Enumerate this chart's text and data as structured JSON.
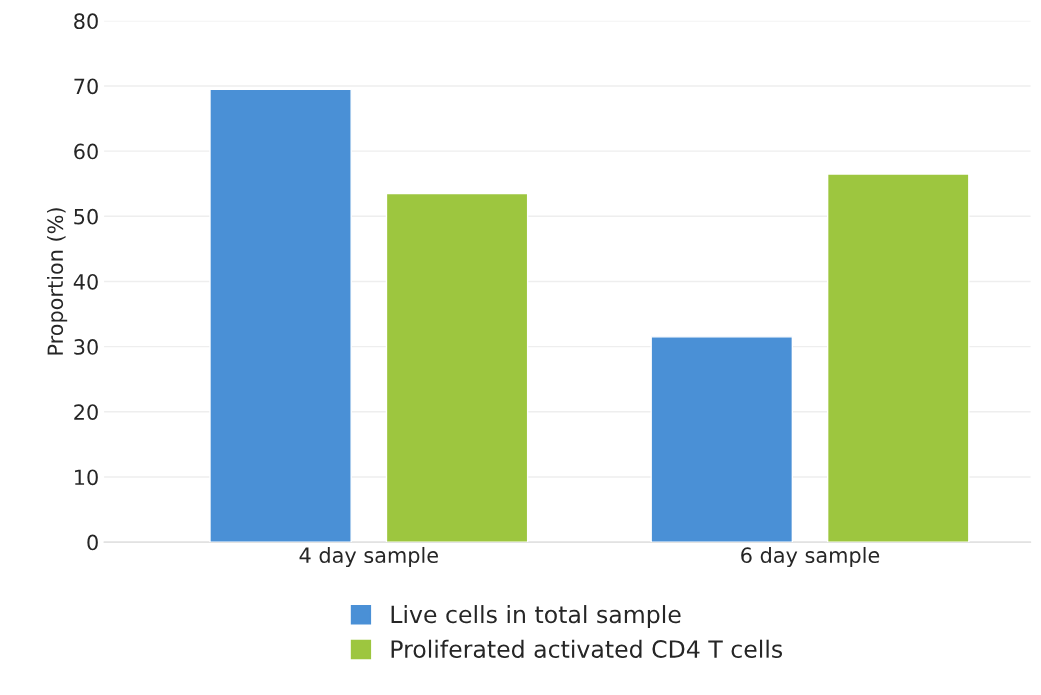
{
  "chart_data": {
    "type": "bar",
    "ylabel": "Proportion (%)",
    "categories": [
      "4 day sample",
      "6 day sample"
    ],
    "series": [
      {
        "name": "Live cells in total sample",
        "color": "#4a90d6",
        "values": [
          69.5,
          31.5
        ]
      },
      {
        "name": "Proliferated activated CD4 T cells",
        "color": "#9dc63f",
        "values": [
          53.5,
          56.5
        ]
      }
    ],
    "ylim": [
      0,
      80
    ],
    "yticks": [
      0,
      10,
      20,
      30,
      40,
      50,
      60,
      70,
      80
    ],
    "grid": "y",
    "legend": "bottom"
  }
}
